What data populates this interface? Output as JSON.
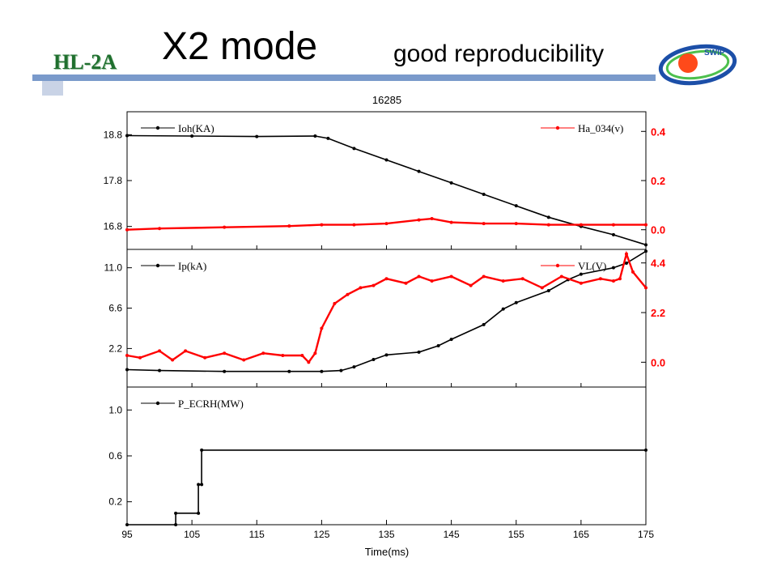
{
  "header": {
    "brand": "HL-2A",
    "title": "X2 mode",
    "subtitle": "good reproducibility",
    "logo_text": "SWIP"
  },
  "chart_data": [
    {
      "type": "line",
      "title": "16285",
      "xlim": [
        95,
        175
      ],
      "ylim_left": [
        16.3,
        19.3
      ],
      "ylim_right": [
        -0.08,
        0.48
      ],
      "yticks_left": [
        "18.8",
        "17.8",
        "16.8"
      ],
      "yticks_right": [
        "0.4",
        "0.2",
        "0.0"
      ],
      "series": [
        {
          "name": "Ioh(KA)",
          "axis": "left",
          "color": "#000000",
          "x": [
            95,
            105,
            115,
            124,
            126,
            130,
            135,
            140,
            145,
            150,
            155,
            160,
            165,
            170,
            175
          ],
          "y": [
            18.78,
            18.77,
            18.76,
            18.77,
            18.72,
            18.5,
            18.25,
            18.0,
            17.75,
            17.5,
            17.25,
            17.0,
            16.8,
            16.62,
            16.4
          ]
        },
        {
          "name": "Ha_034(v)",
          "axis": "right",
          "color": "#ff0000",
          "x": [
            95,
            100,
            110,
            120,
            125,
            130,
            135,
            140,
            142,
            145,
            150,
            155,
            160,
            165,
            170,
            175
          ],
          "y": [
            0.0,
            0.005,
            0.01,
            0.015,
            0.02,
            0.02,
            0.025,
            0.04,
            0.045,
            0.03,
            0.025,
            0.025,
            0.02,
            0.02,
            0.02,
            0.02
          ]
        }
      ]
    },
    {
      "type": "line",
      "xlim": [
        95,
        175
      ],
      "ylim_left": [
        -2,
        13
      ],
      "ylim_right": [
        -1.1,
        5.0
      ],
      "yticks_left": [
        "11.0",
        "6.6",
        "2.2"
      ],
      "yticks_right": [
        "4.4",
        "2.2",
        "0.0"
      ],
      "series": [
        {
          "name": "Ip(kA)",
          "axis": "left",
          "color": "#000000",
          "x": [
            95,
            100,
            110,
            120,
            125,
            128,
            130,
            133,
            135,
            140,
            143,
            145,
            150,
            153,
            155,
            160,
            163,
            165,
            170,
            172,
            175
          ],
          "y": [
            -0.1,
            -0.2,
            -0.3,
            -0.3,
            -0.3,
            -0.2,
            0.2,
            1.0,
            1.5,
            1.8,
            2.5,
            3.2,
            4.8,
            6.5,
            7.2,
            8.5,
            9.7,
            10.3,
            11.0,
            11.5,
            12.8
          ]
        },
        {
          "name": "VL(V)",
          "axis": "right",
          "color": "#ff0000",
          "x": [
            95,
            97,
            100,
            102,
            104,
            107,
            110,
            113,
            116,
            119,
            122,
            123,
            124,
            125,
            127,
            129,
            131,
            133,
            135,
            138,
            140,
            142,
            145,
            148,
            150,
            153,
            156,
            159,
            162,
            165,
            168,
            170,
            171,
            172,
            173,
            175
          ],
          "y": [
            0.3,
            0.2,
            0.5,
            0.1,
            0.5,
            0.2,
            0.4,
            0.1,
            0.4,
            0.3,
            0.3,
            0.0,
            0.4,
            1.5,
            2.6,
            3.0,
            3.3,
            3.4,
            3.7,
            3.5,
            3.8,
            3.6,
            3.8,
            3.4,
            3.8,
            3.6,
            3.7,
            3.3,
            3.8,
            3.5,
            3.7,
            3.6,
            3.7,
            4.8,
            4.0,
            3.3
          ]
        }
      ]
    },
    {
      "type": "line",
      "xlim": [
        95,
        175
      ],
      "xlabel": "Time(ms)",
      "xticks": [
        "95",
        "105",
        "115",
        "125",
        "135",
        "145",
        "155",
        "165",
        "175"
      ],
      "ylim_left": [
        0.0,
        1.2
      ],
      "yticks_left": [
        "1.0",
        "0.6",
        "0.2"
      ],
      "series": [
        {
          "name": "P_ECRH(MW)",
          "axis": "left",
          "color": "#000000",
          "x": [
            95,
            102.5,
            102.5,
            106.0,
            106.0,
            106.5,
            106.5,
            175
          ],
          "y": [
            0.0,
            0.0,
            0.1,
            0.1,
            0.35,
            0.35,
            0.65,
            0.65
          ]
        }
      ]
    }
  ]
}
